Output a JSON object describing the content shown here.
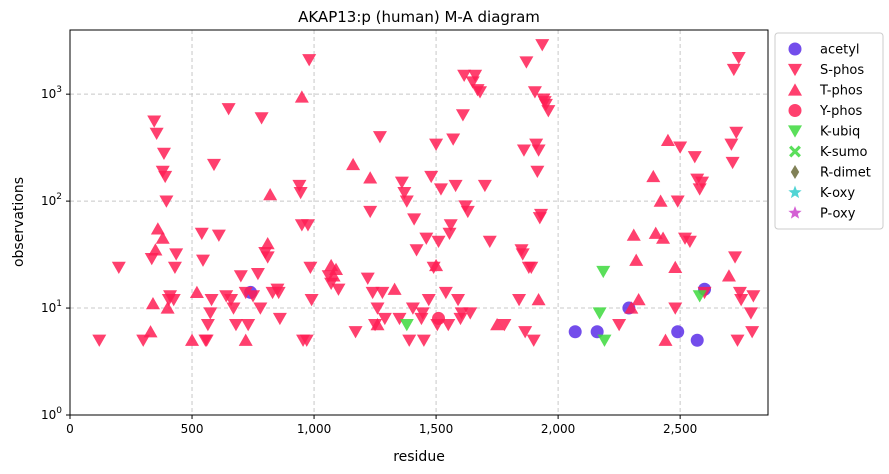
{
  "chart_data": {
    "type": "scatter",
    "title": "AKAP13:p (human) M-A diagram",
    "xlabel": "residue",
    "ylabel": "observations",
    "xlim": [
      0,
      2860
    ],
    "ylim_log10": [
      0,
      3.6
    ],
    "y_scale": "log",
    "x_ticks": [
      0,
      500,
      1000,
      1500,
      2000,
      2500
    ],
    "x_tick_labels": [
      "0",
      "500",
      "1,000",
      "1,500",
      "2,000",
      "2,500"
    ],
    "y_ticks": [
      1,
      10,
      100,
      1000
    ],
    "grid": true,
    "legend_position": "outside-right",
    "series": [
      {
        "name": "acetyl",
        "marker": "circle",
        "color": "#5B2EE8",
        "points": [
          [
            740,
            14
          ],
          [
            2070,
            6
          ],
          [
            2160,
            6
          ],
          [
            2290,
            10
          ],
          [
            2490,
            6
          ],
          [
            2570,
            5
          ],
          [
            2600,
            15
          ]
        ]
      },
      {
        "name": "S-phos",
        "marker": "triangle-down",
        "color": "#FF1F55",
        "points": [
          [
            120,
            5
          ],
          [
            200,
            24
          ],
          [
            300,
            5
          ],
          [
            335,
            29
          ],
          [
            345,
            560
          ],
          [
            355,
            430
          ],
          [
            380,
            190
          ],
          [
            385,
            280
          ],
          [
            390,
            170
          ],
          [
            395,
            100
          ],
          [
            405,
            12
          ],
          [
            410,
            13
          ],
          [
            425,
            12
          ],
          [
            430,
            24
          ],
          [
            435,
            32
          ],
          [
            540,
            50
          ],
          [
            545,
            28
          ],
          [
            555,
            5
          ],
          [
            560,
            5
          ],
          [
            565,
            7
          ],
          [
            575,
            9
          ],
          [
            580,
            12
          ],
          [
            590,
            220
          ],
          [
            610,
            48
          ],
          [
            640,
            13
          ],
          [
            650,
            730
          ],
          [
            660,
            12
          ],
          [
            670,
            10
          ],
          [
            680,
            7
          ],
          [
            700,
            20
          ],
          [
            720,
            14
          ],
          [
            730,
            7
          ],
          [
            750,
            13
          ],
          [
            770,
            21
          ],
          [
            780,
            10
          ],
          [
            785,
            600
          ],
          [
            800,
            33
          ],
          [
            810,
            30
          ],
          [
            830,
            14
          ],
          [
            850,
            15
          ],
          [
            855,
            14
          ],
          [
            860,
            8
          ],
          [
            940,
            140
          ],
          [
            945,
            120
          ],
          [
            950,
            60
          ],
          [
            955,
            5
          ],
          [
            970,
            5
          ],
          [
            975,
            60
          ],
          [
            980,
            2100
          ],
          [
            985,
            24
          ],
          [
            990,
            12
          ],
          [
            1060,
            20
          ],
          [
            1070,
            17
          ],
          [
            1100,
            15
          ],
          [
            1170,
            6
          ],
          [
            1220,
            19
          ],
          [
            1230,
            80
          ],
          [
            1240,
            14
          ],
          [
            1250,
            7
          ],
          [
            1260,
            10
          ],
          [
            1270,
            400
          ],
          [
            1280,
            14
          ],
          [
            1290,
            8
          ],
          [
            1350,
            8
          ],
          [
            1360,
            150
          ],
          [
            1370,
            120
          ],
          [
            1380,
            100
          ],
          [
            1390,
            5
          ],
          [
            1405,
            10
          ],
          [
            1410,
            68
          ],
          [
            1420,
            35
          ],
          [
            1440,
            8
          ],
          [
            1445,
            9
          ],
          [
            1450,
            5
          ],
          [
            1460,
            45
          ],
          [
            1470,
            12
          ],
          [
            1480,
            170
          ],
          [
            1490,
            24
          ],
          [
            1500,
            340
          ],
          [
            1505,
            7
          ],
          [
            1510,
            42
          ],
          [
            1520,
            130
          ],
          [
            1540,
            14
          ],
          [
            1550,
            7
          ],
          [
            1555,
            50
          ],
          [
            1560,
            60
          ],
          [
            1570,
            380
          ],
          [
            1580,
            140
          ],
          [
            1590,
            12
          ],
          [
            1600,
            8
          ],
          [
            1605,
            9
          ],
          [
            1610,
            640
          ],
          [
            1615,
            1500
          ],
          [
            1620,
            90
          ],
          [
            1630,
            80
          ],
          [
            1640,
            9
          ],
          [
            1650,
            1300
          ],
          [
            1660,
            1500
          ],
          [
            1670,
            1100
          ],
          [
            1680,
            1050
          ],
          [
            1700,
            140
          ],
          [
            1720,
            42
          ],
          [
            1780,
            7
          ],
          [
            1840,
            12
          ],
          [
            1850,
            35
          ],
          [
            1855,
            32
          ],
          [
            1860,
            300
          ],
          [
            1865,
            6
          ],
          [
            1870,
            2000
          ],
          [
            1880,
            24
          ],
          [
            1890,
            24
          ],
          [
            1900,
            5
          ],
          [
            1905,
            1050
          ],
          [
            1910,
            340
          ],
          [
            1915,
            190
          ],
          [
            1920,
            300
          ],
          [
            1925,
            70
          ],
          [
            1930,
            75
          ],
          [
            1935,
            2900
          ],
          [
            1940,
            900
          ],
          [
            1945,
            850
          ],
          [
            1950,
            800
          ],
          [
            1960,
            700
          ],
          [
            2250,
            7
          ],
          [
            2480,
            10
          ],
          [
            2490,
            100
          ],
          [
            2500,
            320
          ],
          [
            2520,
            45
          ],
          [
            2540,
            42
          ],
          [
            2560,
            260
          ],
          [
            2570,
            160
          ],
          [
            2580,
            130
          ],
          [
            2590,
            150
          ],
          [
            2600,
            14
          ],
          [
            2710,
            340
          ],
          [
            2715,
            230
          ],
          [
            2720,
            1700
          ],
          [
            2725,
            30
          ],
          [
            2730,
            440
          ],
          [
            2735,
            5
          ],
          [
            2740,
            2200
          ],
          [
            2745,
            14
          ],
          [
            2750,
            12
          ],
          [
            2790,
            9
          ],
          [
            2795,
            6
          ],
          [
            2800,
            13
          ]
        ]
      },
      {
        "name": "T-phos",
        "marker": "triangle-up",
        "color": "#FF1F55",
        "points": [
          [
            330,
            6
          ],
          [
            340,
            11
          ],
          [
            350,
            35
          ],
          [
            360,
            55
          ],
          [
            380,
            45
          ],
          [
            400,
            10
          ],
          [
            500,
            5
          ],
          [
            520,
            14
          ],
          [
            720,
            5
          ],
          [
            810,
            40
          ],
          [
            820,
            115
          ],
          [
            950,
            940
          ],
          [
            1070,
            25
          ],
          [
            1080,
            20
          ],
          [
            1090,
            23
          ],
          [
            1160,
            220
          ],
          [
            1230,
            165
          ],
          [
            1260,
            7
          ],
          [
            1330,
            15
          ],
          [
            1500,
            25
          ],
          [
            1750,
            7
          ],
          [
            1920,
            12
          ],
          [
            2300,
            10
          ],
          [
            2310,
            48
          ],
          [
            2320,
            28
          ],
          [
            2330,
            12
          ],
          [
            2390,
            170
          ],
          [
            2400,
            50
          ],
          [
            2420,
            100
          ],
          [
            2430,
            45
          ],
          [
            2440,
            5
          ],
          [
            2450,
            370
          ],
          [
            2480,
            24
          ],
          [
            2700,
            20
          ]
        ]
      },
      {
        "name": "Y-phos",
        "marker": "circle",
        "color": "#FF1F55",
        "points": [
          [
            1510,
            8
          ]
        ]
      },
      {
        "name": "K-ubiq",
        "marker": "triangle-down",
        "color": "#3DD93D",
        "points": [
          [
            1380,
            7
          ],
          [
            2170,
            9
          ],
          [
            2185,
            22
          ],
          [
            2190,
            5
          ],
          [
            2580,
            13
          ]
        ]
      },
      {
        "name": "K-sumo",
        "marker": "x-thick",
        "color": "#3DD93D",
        "points": []
      },
      {
        "name": "R-dimet",
        "marker": "diamond",
        "color": "#6B6B3A",
        "points": []
      },
      {
        "name": "K-oxy",
        "marker": "star",
        "color": "#33CCCC",
        "points": []
      },
      {
        "name": "P-oxy",
        "marker": "star",
        "color": "#CC44CC",
        "points": []
      }
    ]
  }
}
